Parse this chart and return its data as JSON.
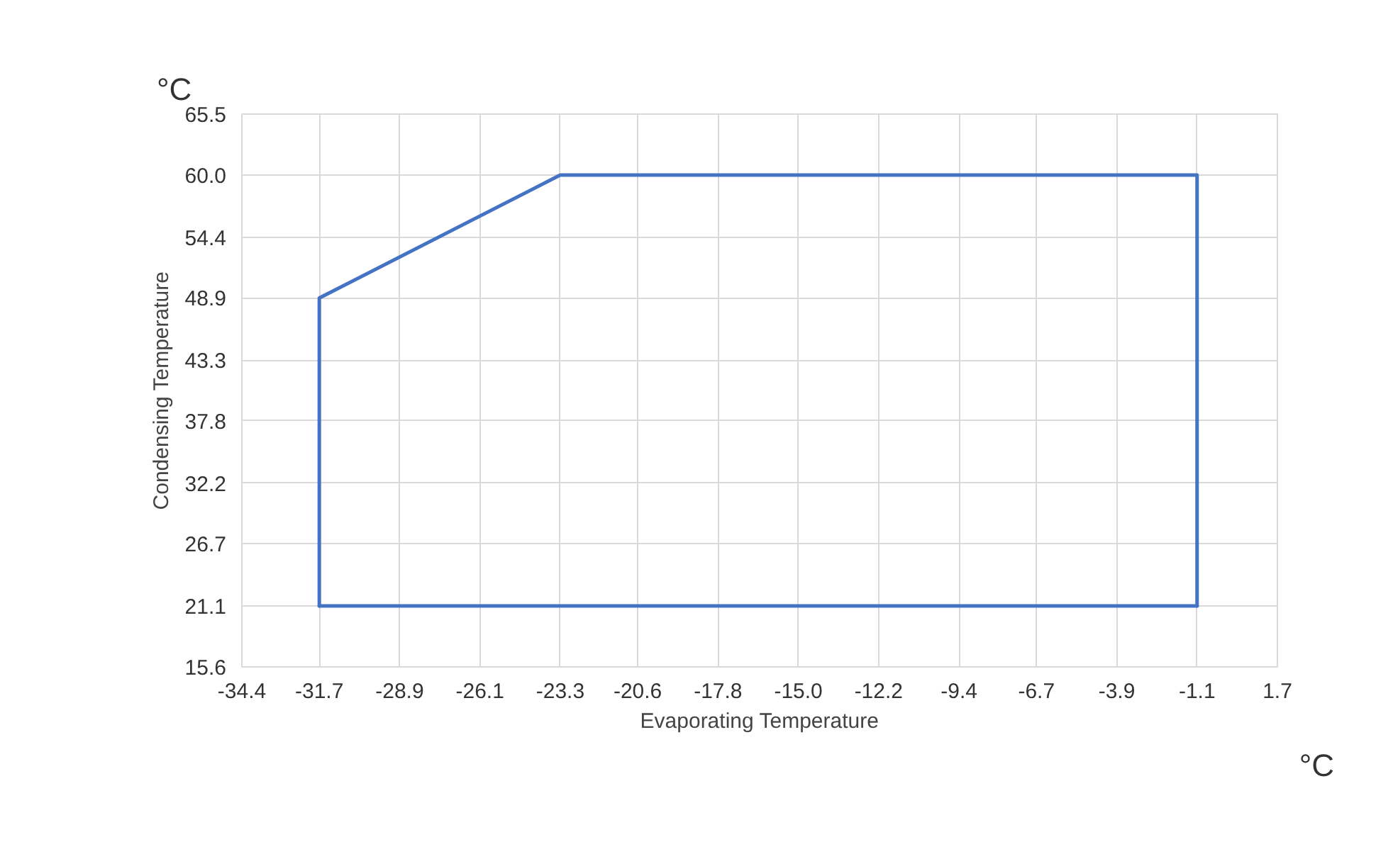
{
  "chart_data": {
    "type": "line",
    "xlabel": "Evaporating Temperature",
    "ylabel": "Condensing Temperature",
    "annotations": [
      "°C",
      "°C"
    ],
    "series": [
      {
        "color": "#4472c4",
        "x": [
          -31.7,
          -31.7,
          -23.3,
          -1.1,
          -1.1
        ],
        "values": [
          21.1,
          48.9,
          60.0,
          60.0,
          21.1
        ]
      },
      {
        "color": "#4472c4",
        "x": [
          -31.7,
          -1.1
        ],
        "values": [
          21.1,
          21.1
        ]
      }
    ],
    "xlim": [
      -34.4,
      1.7
    ],
    "xticks": [
      -34.4,
      -31.7,
      -28.9,
      -26.1,
      -23.3,
      -20.6,
      -17.8,
      {
        "value": -15,
        "label": "-15.0"
      },
      -12.2,
      -9.4,
      -6.7,
      -3.9,
      -1.1,
      1.7
    ],
    "ylim": [
      15.6,
      65.5
    ],
    "yticks": [
      15.6,
      21.1,
      26.7,
      32.2,
      37.8,
      43.3,
      48.9,
      54.4,
      {
        "value": 60,
        "label": "60.0"
      },
      65.5
    ],
    "grid": true,
    "marker": "none",
    "line_style": "solid"
  }
}
